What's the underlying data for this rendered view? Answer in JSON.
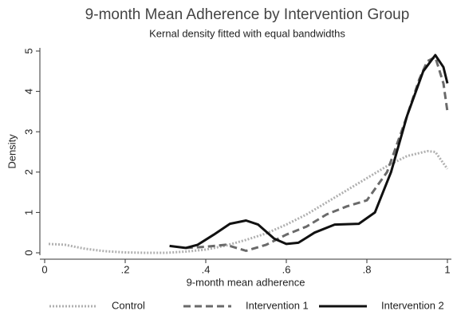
{
  "chart_data": {
    "type": "line",
    "title": "9-month Mean Adherence by Intervention Group",
    "subtitle": "Kernal density fitted with equal bandwidths",
    "x_label": "9-month mean adherence",
    "y_label": "Density",
    "xlim": [
      0,
      1
    ],
    "ylim": [
      0,
      5
    ],
    "xticks": [
      0,
      {
        "value": 0.2,
        "label": ".2"
      },
      {
        "value": 0.4,
        "label": ".4"
      },
      {
        "value": 0.6,
        "label": ".6"
      },
      {
        "value": 0.8,
        "label": ".8"
      },
      1
    ],
    "yticks": [
      0,
      1,
      2,
      3,
      4,
      5
    ],
    "legend": "bottom",
    "series": [
      {
        "name": "Control",
        "color": "#b0b0b0",
        "dash": "dotted",
        "x": [
          0.01,
          0.05,
          0.1,
          0.15,
          0.2,
          0.25,
          0.3,
          0.35,
          0.4,
          0.45,
          0.5,
          0.55,
          0.6,
          0.65,
          0.7,
          0.75,
          0.8,
          0.85,
          0.9,
          0.95,
          0.97,
          1.0
        ],
        "values": [
          0.22,
          0.2,
          0.1,
          0.04,
          0.01,
          0.0,
          0.0,
          0.03,
          0.08,
          0.18,
          0.32,
          0.48,
          0.7,
          0.95,
          1.25,
          1.55,
          1.85,
          2.15,
          2.4,
          2.52,
          2.5,
          2.08
        ]
      },
      {
        "name": "Intervention 1",
        "color": "#6a6a6a",
        "dash": "dashed",
        "x": [
          0.35,
          0.4,
          0.45,
          0.5,
          0.55,
          0.6,
          0.65,
          0.7,
          0.75,
          0.8,
          0.85,
          0.9,
          0.93,
          0.95,
          0.97,
          0.99,
          1.0
        ],
        "values": [
          0.12,
          0.15,
          0.2,
          0.05,
          0.2,
          0.45,
          0.65,
          0.95,
          1.15,
          1.3,
          2.0,
          3.4,
          4.3,
          4.75,
          4.85,
          4.2,
          3.5
        ]
      },
      {
        "name": "Intervention 2",
        "color": "#111111",
        "dash": "solid",
        "x": [
          0.31,
          0.35,
          0.38,
          0.42,
          0.46,
          0.5,
          0.53,
          0.57,
          0.6,
          0.63,
          0.67,
          0.72,
          0.78,
          0.82,
          0.86,
          0.9,
          0.94,
          0.97,
          0.99,
          1.0
        ],
        "values": [
          0.17,
          0.12,
          0.2,
          0.45,
          0.72,
          0.8,
          0.7,
          0.35,
          0.22,
          0.25,
          0.5,
          0.7,
          0.72,
          1.0,
          2.0,
          3.4,
          4.5,
          4.9,
          4.6,
          4.2
        ]
      }
    ]
  }
}
